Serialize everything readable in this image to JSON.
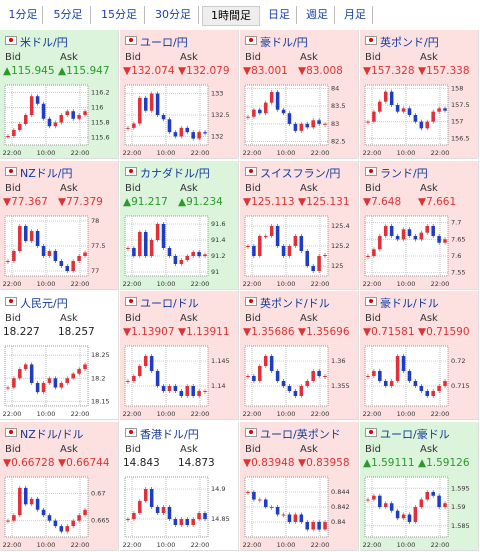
{
  "tabs": {
    "items": [
      "1分足",
      "5分足",
      "15分足",
      "30分足",
      "1時間足",
      "日足",
      "週足",
      "月足"
    ],
    "active": 4
  },
  "labels": {
    "bid": "Bid",
    "ask": "Ask",
    "times": [
      "22:00",
      "10:00",
      "22:00"
    ]
  },
  "tiles": [
    {
      "name": "米ドル/円",
      "trend": "up",
      "bid": "▲115.945",
      "ask": "▲115.947",
      "ylim": [
        115.5,
        116.3
      ],
      "yticks": [
        116.2,
        116,
        115.8,
        115.6
      ],
      "values": [
        115.62,
        115.7,
        115.78,
        115.9,
        116.15,
        116.05,
        115.85,
        115.75,
        115.8,
        115.9,
        115.95,
        115.85,
        115.9,
        115.95
      ]
    },
    {
      "name": "ユーロ/円",
      "trend": "down",
      "bid": "▼132.074",
      "ask": "▼132.079",
      "ylim": [
        131.8,
        133.2
      ],
      "yticks": [
        133,
        132.5,
        132
      ],
      "values": [
        132.2,
        132.3,
        132.9,
        132.6,
        133.0,
        132.5,
        132.4,
        132.1,
        132.0,
        132.2,
        132.1,
        131.95,
        132.1,
        132.07
      ]
    },
    {
      "name": "豪ドル/円",
      "trend": "down",
      "bid": "▼83.001",
      "ask": "▼83.008",
      "ylim": [
        82.4,
        84.1
      ],
      "yticks": [
        84,
        83.5,
        83,
        82.5
      ],
      "values": [
        83.2,
        83.4,
        83.3,
        83.6,
        83.9,
        83.4,
        83.3,
        83.0,
        82.8,
        83.0,
        82.9,
        83.1,
        83.0,
        83.0
      ]
    },
    {
      "name": "英ポンド/円",
      "trend": "down",
      "bid": "▼157.328",
      "ask": "▼157.338",
      "ylim": [
        156.3,
        158.1
      ],
      "yticks": [
        158,
        157.5,
        157,
        156.5
      ],
      "values": [
        157.0,
        157.3,
        157.6,
        157.9,
        157.5,
        157.3,
        157.4,
        157.2,
        157.0,
        156.8,
        157.0,
        157.3,
        157.4,
        157.33
      ]
    },
    {
      "name": "NZドル/円",
      "trend": "down",
      "bid": "▼77.367",
      "ask": "▼77.379",
      "ylim": [
        76.9,
        78.1
      ],
      "yticks": [
        78,
        77.5,
        77
      ],
      "values": [
        77.2,
        77.4,
        77.9,
        77.6,
        77.8,
        77.5,
        77.3,
        77.4,
        77.2,
        77.1,
        77.0,
        77.2,
        77.3,
        77.37
      ]
    },
    {
      "name": "カナダドル/円",
      "trend": "up",
      "bid": "▲91.217",
      "ask": "▲91.234",
      "ylim": [
        90.95,
        91.7
      ],
      "yticks": [
        91.6,
        91.4,
        91.2,
        91
      ],
      "values": [
        91.3,
        91.2,
        91.5,
        91.2,
        91.4,
        91.6,
        91.3,
        91.2,
        91.1,
        91.15,
        91.2,
        91.25,
        91.2,
        91.22
      ]
    },
    {
      "name": "スイスフラン/円",
      "trend": "down",
      "bid": "▼125.113",
      "ask": "▼125.131",
      "ylim": [
        124.9,
        125.5
      ],
      "yticks": [
        125.4,
        125.2,
        125
      ],
      "values": [
        125.2,
        125.1,
        125.3,
        125.3,
        125.4,
        125.2,
        125.1,
        125.2,
        125.3,
        125.15,
        125.0,
        124.95,
        125.1,
        125.11
      ]
    },
    {
      "name": "ランド/円",
      "trend": "down",
      "bid": "▼7.648",
      "ask": "▼7.661",
      "ylim": [
        7.54,
        7.72
      ],
      "yticks": [
        7.7,
        7.65,
        7.6,
        7.55
      ],
      "values": [
        7.6,
        7.62,
        7.66,
        7.69,
        7.66,
        7.65,
        7.68,
        7.66,
        7.65,
        7.67,
        7.69,
        7.66,
        7.64,
        7.65
      ]
    },
    {
      "name": "人民元/円",
      "trend": "flat",
      "bid": "18.227",
      "ask": "18.257",
      "ylim": [
        18.14,
        18.27
      ],
      "yticks": [
        18.25,
        18.2,
        18.15
      ],
      "values": [
        18.18,
        18.2,
        18.22,
        18.23,
        18.19,
        18.17,
        18.19,
        18.2,
        18.18,
        18.19,
        18.2,
        18.21,
        18.22,
        18.23
      ]
    },
    {
      "name": "ユーロ/ドル",
      "trend": "down",
      "bid": "▼1.13907",
      "ask": "▼1.13911",
      "ylim": [
        1.136,
        1.148
      ],
      "yticks": [
        1.145,
        1.14
      ],
      "values": [
        1.141,
        1.142,
        1.144,
        1.146,
        1.143,
        1.14,
        1.139,
        1.14,
        1.139,
        1.138,
        1.14,
        1.138,
        1.139,
        1.139
      ]
    },
    {
      "name": "英ポンド/ドル",
      "trend": "down",
      "bid": "▼1.35686",
      "ask": "▼1.35696",
      "ylim": [
        1.351,
        1.363
      ],
      "yticks": [
        1.36,
        1.355
      ],
      "values": [
        1.357,
        1.356,
        1.359,
        1.361,
        1.358,
        1.356,
        1.355,
        1.354,
        1.353,
        1.355,
        1.356,
        1.358,
        1.357,
        1.357
      ]
    },
    {
      "name": "豪ドル/ドル",
      "trend": "down",
      "bid": "▼0.71581",
      "ask": "▼0.71590",
      "ylim": [
        0.711,
        0.723
      ],
      "yticks": [
        0.72,
        0.715
      ],
      "values": [
        0.717,
        0.718,
        0.716,
        0.715,
        0.716,
        0.721,
        0.718,
        0.716,
        0.715,
        0.714,
        0.713,
        0.714,
        0.715,
        0.716
      ]
    },
    {
      "name": "NZドル/ドル",
      "trend": "down",
      "bid": "▼0.66728",
      "ask": "▼0.66744",
      "ylim": [
        0.662,
        0.673
      ],
      "yticks": [
        0.67,
        0.665
      ],
      "values": [
        0.665,
        0.666,
        0.671,
        0.668,
        0.669,
        0.667,
        0.666,
        0.665,
        0.664,
        0.663,
        0.664,
        0.665,
        0.666,
        0.667
      ]
    },
    {
      "name": "香港ドル/円",
      "trend": "flat",
      "bid": "14.843",
      "ask": "14.873",
      "ylim": [
        14.82,
        14.92
      ],
      "yticks": [
        14.9,
        14.85
      ],
      "values": [
        14.85,
        14.86,
        14.88,
        14.9,
        14.87,
        14.86,
        14.87,
        14.85,
        14.84,
        14.85,
        14.84,
        14.85,
        14.86,
        14.85
      ]
    },
    {
      "name": "ユーロ/英ポンド",
      "trend": "down",
      "bid": "▼0.83948",
      "ask": "▼0.83958",
      "ylim": [
        0.838,
        0.846
      ],
      "yticks": [
        0.844,
        0.842,
        0.84
      ],
      "values": [
        0.844,
        0.843,
        0.843,
        0.842,
        0.842,
        0.841,
        0.841,
        0.84,
        0.841,
        0.84,
        0.839,
        0.84,
        0.839,
        0.84
      ]
    },
    {
      "name": "ユーロ/豪ドル",
      "trend": "up",
      "bid": "▲1.59111",
      "ask": "▲1.59126",
      "ylim": [
        1.582,
        1.598
      ],
      "yticks": [
        1.595,
        1.59,
        1.585
      ],
      "values": [
        1.592,
        1.593,
        1.59,
        1.591,
        1.589,
        1.587,
        1.588,
        1.586,
        1.59,
        1.592,
        1.594,
        1.593,
        1.59,
        1.591
      ]
    }
  ]
}
